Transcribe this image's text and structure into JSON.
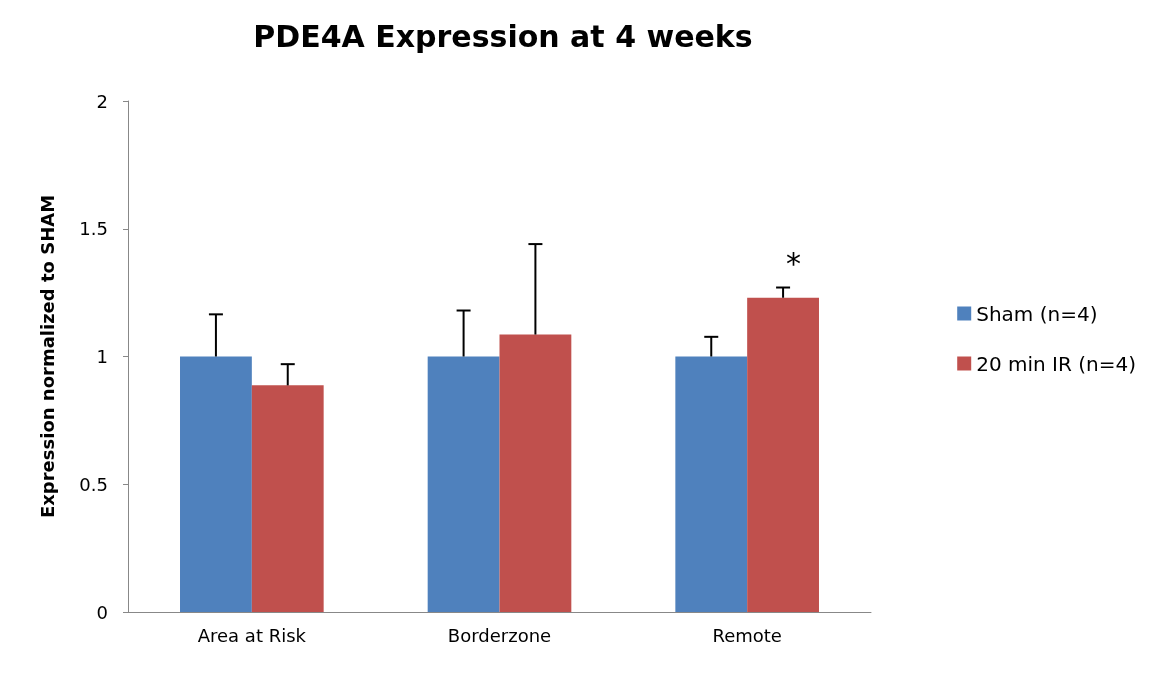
{
  "chart_data": {
    "type": "bar",
    "title": "PDE4A Expression at 4 weeks",
    "ylabel": "Expression normalized to SHAM",
    "categories": [
      "Area at Risk",
      "Borderzone",
      "Remote"
    ],
    "series": [
      {
        "name": "Sham (n=4)",
        "color": "#4f81bd",
        "values": [
          1.0,
          1.0,
          1.0
        ],
        "errors": [
          [
            1.0,
            1.165
          ],
          [
            1.0,
            1.18
          ],
          [
            1.0,
            1.077
          ]
        ]
      },
      {
        "name": "20 min IR (n=4)",
        "color": "#c0504d",
        "values": [
          0.887,
          1.086,
          1.23
        ],
        "errors": [
          [
            0.887,
            0.97
          ],
          [
            1.086,
            1.44
          ],
          [
            1.23,
            1.27
          ]
        ]
      }
    ],
    "ylim": [
      0,
      2
    ],
    "yticks": [
      0,
      0.5,
      1,
      1.5,
      2
    ],
    "grid": false,
    "legend": "right",
    "annotations": [
      "*"
    ]
  }
}
